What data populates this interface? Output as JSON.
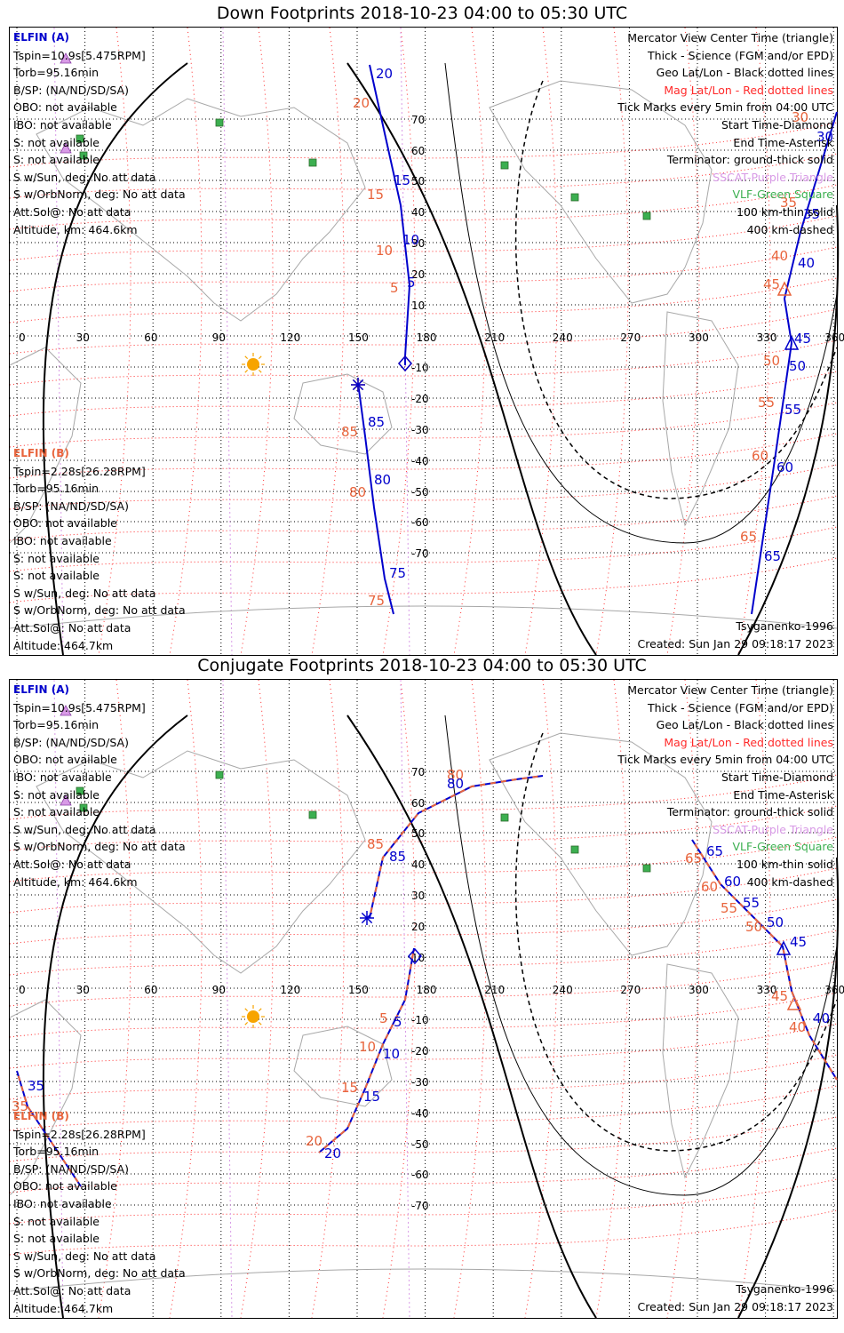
{
  "top": {
    "title": "Down Footprints 2018-10-23 04:00 to 05:30 UTC",
    "elfin_a": {
      "name": "ELFIN (A)",
      "lines": [
        "Tspin=10.9s[5.475RPM]",
        "Torb=95.16min",
        "B/SP: (NA/ND/SD/SA)",
        "OBO: not available",
        "IBO: not available",
        "S: not available",
        "S: not available",
        "S w/Sun, deg: No att data",
        "S w/OrbNorm, deg: No att data",
        "Att.Sol@: No att data",
        "Altitude, km: 464.6km"
      ]
    },
    "elfin_b": {
      "name": "ELFIN (B)",
      "lines": [
        "Tspin=2.28s[26.28RPM]",
        "Torb=95.16min",
        "B/SP: (NA/ND/SD/SA)",
        "OBO: not available",
        "IBO: not available",
        "S: not available",
        "S: not available",
        "S w/Sun, deg: No att data",
        "S w/OrbNorm, deg: No att data",
        "Att.Sol@: No att data",
        "Altitude: 464.7km"
      ]
    },
    "credit": "Tsyganenko-1996",
    "created": "Created: Sun Jan 29 09:18:17 2023"
  },
  "bottom": {
    "title": "Conjugate Footprints 2018-10-23 04:00 to 05:30 UTC",
    "elfin_a": {
      "name": "ELFIN (A)",
      "lines": [
        "Tspin=10.9s[5.475RPM]",
        "Torb=95.16min",
        "B/SP: (NA/ND/SD/SA)",
        "OBO: not available",
        "IBO: not available",
        "S: not available",
        "S: not available",
        "S w/Sun, deg: No att data",
        "S w/OrbNorm, deg: No att data",
        "Att.Sol@: No att data",
        "Altitude, km: 464.6km"
      ]
    },
    "elfin_b": {
      "name": "ELFIN (B)",
      "lines": [
        "Tspin=2.28s[26.28RPM]",
        "Torb=95.16min",
        "B/SP: (NA/ND/SD/SA)",
        "OBO: not available",
        "IBO: not available",
        "S: not available",
        "S: not available",
        "S w/Sun, deg: No att data",
        "S w/OrbNorm, deg: No att data",
        "Att.Sol@: No att data",
        "Altitude: 464.7km"
      ]
    },
    "credit": "Tsyganenko-1996",
    "created": "Created: Sun Jan 29 09:18:17 2023"
  },
  "legend": [
    "Mercator View Center Time (triangle)",
    "Thick - Science (FGM and/or EPD)",
    "Geo Lat/Lon - Black dotted lines",
    "Mag Lat/Lon - Red dotted lines",
    "Tick Marks every 5min from 04:00 UTC",
    "Start Time-Diamond",
    "End Time-Asterisk",
    "Terminator: ground-thick solid",
    "SSCAT-Purple Triangle",
    "VLF-Green Square",
    "100 km-thin solid",
    "400 km-dashed"
  ],
  "axes": {
    "lon_ticks": [
      "0",
      "30",
      "60",
      "90",
      "120",
      "150",
      "180",
      "210",
      "240",
      "270",
      "300",
      "330",
      "360"
    ],
    "lat_ticks": [
      "70",
      "60",
      "50",
      "40",
      "30",
      "20",
      "10",
      "-10",
      "-20",
      "-30",
      "-40",
      "-50",
      "-60",
      "-70"
    ]
  },
  "colors": {
    "elfin_a": "#0000cc",
    "elfin_b": "#e8643c",
    "mag_grid": "#ff2a2a",
    "geo_grid": "#000000",
    "sscat": "#d89ae6",
    "vlf": "#3caf50",
    "sun": "#f7a400"
  },
  "top_track_labels": {
    "a": [
      "20",
      "15",
      "10",
      "5",
      "85",
      "80",
      "75",
      "30",
      "35",
      "40",
      "45",
      "50",
      "55",
      "60",
      "65"
    ],
    "b": [
      "20",
      "15",
      "10",
      "5",
      "85",
      "80",
      "75",
      "30",
      "35",
      "40",
      "45",
      "50",
      "55",
      "60",
      "65"
    ]
  },
  "bottom_track_labels": {
    "a": [
      "80",
      "85",
      "5",
      "10",
      "15",
      "20",
      "35",
      "65",
      "60",
      "55",
      "50",
      "45",
      "40"
    ],
    "b": [
      "80",
      "85",
      "5",
      "10",
      "15",
      "20",
      "35",
      "65",
      "60",
      "55",
      "50",
      "45",
      "40"
    ]
  }
}
